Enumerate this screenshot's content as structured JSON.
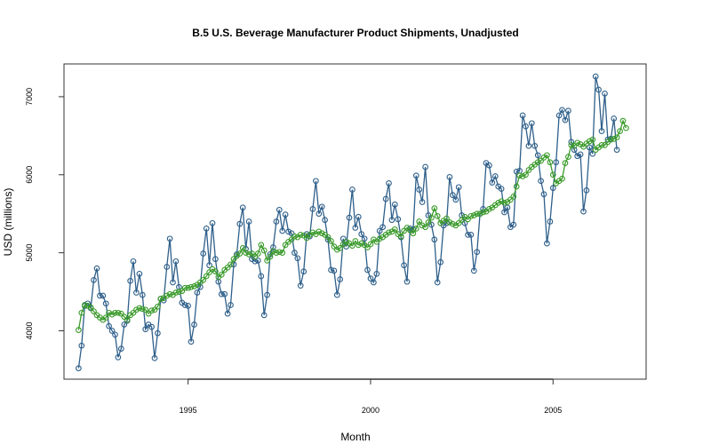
{
  "chart_data": {
    "type": "line",
    "title": "B.5  U.S. Beverage Manufacturer Product Shipments, Unadjusted",
    "xlabel": "Month",
    "ylabel": "USD (millions)",
    "xlim": [
      1991.6,
      2007.55
    ],
    "ylim": [
      3380,
      7420
    ],
    "x_ticks": [
      1995,
      2000,
      2005
    ],
    "y_ticks": [
      4000,
      5000,
      6000,
      7000
    ],
    "grid": false,
    "legend": "none",
    "x_start": 1992.0,
    "x_step": 0.083333,
    "series": [
      {
        "marker": "circle",
        "color": "#2e5f8a",
        "values": [
          3520,
          3810,
          4320,
          4350,
          4290,
          4650,
          4800,
          4450,
          4450,
          4350,
          4060,
          4000,
          3950,
          3660,
          3770,
          4080,
          4130,
          4640,
          4890,
          4490,
          4730,
          4460,
          4020,
          4080,
          4050,
          3650,
          3970,
          4410,
          4390,
          4820,
          5180,
          4620,
          4890,
          4560,
          4360,
          4330,
          4320,
          3860,
          4080,
          4490,
          4560,
          4990,
          5310,
          4840,
          5380,
          4920,
          4630,
          4470,
          4470,
          4220,
          4330,
          4850,
          4980,
          5370,
          5580,
          5050,
          5400,
          4920,
          4890,
          4900,
          4700,
          4200,
          4460,
          4980,
          5070,
          5400,
          5550,
          5280,
          5490,
          5270,
          5250,
          5000,
          4930,
          4580,
          4760,
          5240,
          5210,
          5560,
          5920,
          5500,
          5590,
          5420,
          5170,
          4780,
          4770,
          4460,
          4660,
          5180,
          5080,
          5450,
          5810,
          5320,
          5460,
          5240,
          5180,
          4780,
          4670,
          4620,
          4730,
          5280,
          5330,
          5690,
          5890,
          5420,
          5620,
          5430,
          5200,
          4840,
          4630,
          5310,
          5300,
          5990,
          5810,
          5650,
          6100,
          5480,
          5360,
          5170,
          4620,
          4880,
          5350,
          5380,
          5970,
          5740,
          5680,
          5840,
          5480,
          5380,
          5230,
          5230,
          4770,
          5010,
          5500,
          5560,
          6150,
          6120,
          5900,
          5980,
          5850,
          5820,
          5520,
          5580,
          5330,
          5360,
          6040,
          6050,
          6760,
          6620,
          6370,
          6660,
          6370,
          6250,
          5920,
          5750,
          5120,
          5400,
          5830,
          6160,
          6760,
          6830,
          6700,
          6820,
          6420,
          6320,
          6240,
          6260,
          5530,
          5800,
          6350,
          6270,
          7260,
          7090,
          6560,
          7040,
          6450,
          6460,
          6720,
          6320
        ]
      },
      {
        "marker": "circle",
        "color": "#3a9a2a",
        "values": [
          4010,
          4230,
          4330,
          4320,
          4300,
          4250,
          4200,
          4170,
          4140,
          4170,
          4230,
          4210,
          4230,
          4230,
          4220,
          4180,
          4140,
          4200,
          4230,
          4270,
          4290,
          4280,
          4270,
          4220,
          4260,
          4270,
          4310,
          4410,
          4420,
          4450,
          4470,
          4460,
          4490,
          4500,
          4510,
          4550,
          4550,
          4560,
          4570,
          4590,
          4620,
          4650,
          4700,
          4750,
          4790,
          4760,
          4690,
          4720,
          4780,
          4810,
          4850,
          4920,
          4960,
          4990,
          5060,
          5000,
          4980,
          4990,
          4950,
          4990,
          5100,
          5030,
          4900,
          4950,
          5020,
          5000,
          5010,
          5000,
          5100,
          5140,
          5170,
          5210,
          5200,
          5230,
          5220,
          5190,
          5230,
          5260,
          5240,
          5270,
          5250,
          5230,
          5200,
          5150,
          5080,
          5040,
          5060,
          5110,
          5140,
          5120,
          5090,
          5150,
          5100,
          5120,
          5100,
          5070,
          5110,
          5170,
          5140,
          5180,
          5200,
          5230,
          5260,
          5270,
          5300,
          5240,
          5210,
          5280,
          5320,
          5290,
          5250,
          5310,
          5400,
          5350,
          5330,
          5390,
          5450,
          5570,
          5470,
          5380,
          5410,
          5440,
          5390,
          5370,
          5350,
          5380,
          5420,
          5460,
          5430,
          5470,
          5480,
          5500,
          5500,
          5520,
          5530,
          5560,
          5580,
          5610,
          5640,
          5660,
          5640,
          5650,
          5680,
          5720,
          5850,
          5990,
          5980,
          6000,
          6060,
          6100,
          6130,
          6160,
          6180,
          6220,
          6250,
          6160,
          6000,
          5890,
          5920,
          5950,
          6150,
          6230,
          6380,
          6370,
          6410,
          6390,
          6360,
          6400,
          6430,
          6450,
          6320,
          6350,
          6380,
          6380,
          6420,
          6450,
          6460,
          6480,
          6560,
          6690,
          6600
        ]
      }
    ]
  }
}
